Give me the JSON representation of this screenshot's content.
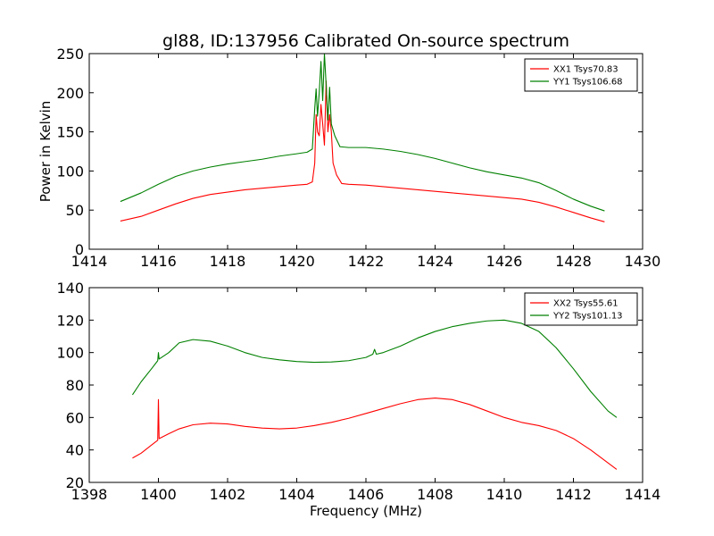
{
  "title": "gl88, ID:137956 Calibrated On-source spectrum",
  "chart_data": [
    {
      "type": "line",
      "title": "gl88, ID:137956 Calibrated On-source spectrum",
      "xlabel": "",
      "ylabel": "Power in Kelvin",
      "xlim": [
        1414,
        1430
      ],
      "ylim": [
        0,
        250
      ],
      "xticks": [
        1414,
        1416,
        1418,
        1420,
        1422,
        1424,
        1426,
        1428,
        1430
      ],
      "yticks": [
        0,
        50,
        100,
        150,
        200,
        250
      ],
      "grid": false,
      "legend_position": "top-right",
      "series": [
        {
          "name": "XX1 Tsys70.83",
          "color": "#ff0000",
          "points": [
            [
              1414.9,
              36
            ],
            [
              1415.5,
              42
            ],
            [
              1416.0,
              50
            ],
            [
              1416.5,
              58
            ],
            [
              1417.0,
              65
            ],
            [
              1417.5,
              70
            ],
            [
              1418.0,
              73
            ],
            [
              1418.5,
              76
            ],
            [
              1419.0,
              78
            ],
            [
              1419.5,
              80
            ],
            [
              1420.0,
              82
            ],
            [
              1420.3,
              83
            ],
            [
              1420.45,
              86
            ],
            [
              1420.52,
              110
            ],
            [
              1420.56,
              172
            ],
            [
              1420.6,
              150
            ],
            [
              1420.65,
              145
            ],
            [
              1420.7,
              185
            ],
            [
              1420.75,
              160
            ],
            [
              1420.8,
              133
            ],
            [
              1420.85,
              215
            ],
            [
              1420.9,
              150
            ],
            [
              1420.95,
              172
            ],
            [
              1421.0,
              150
            ],
            [
              1421.05,
              110
            ],
            [
              1421.15,
              95
            ],
            [
              1421.3,
              84
            ],
            [
              1421.5,
              83
            ],
            [
              1422.0,
              82
            ],
            [
              1422.5,
              80
            ],
            [
              1423.0,
              78
            ],
            [
              1423.5,
              76
            ],
            [
              1424.0,
              74
            ],
            [
              1424.5,
              72
            ],
            [
              1425.0,
              70
            ],
            [
              1425.5,
              68
            ],
            [
              1426.0,
              66
            ],
            [
              1426.5,
              64
            ],
            [
              1427.0,
              60
            ],
            [
              1427.5,
              54
            ],
            [
              1428.0,
              47
            ],
            [
              1428.5,
              40
            ],
            [
              1428.9,
              35
            ]
          ]
        },
        {
          "name": "YY1 Tsys106.68",
          "color": "#008000",
          "points": [
            [
              1414.9,
              61
            ],
            [
              1415.5,
              72
            ],
            [
              1416.0,
              83
            ],
            [
              1416.5,
              93
            ],
            [
              1417.0,
              100
            ],
            [
              1417.5,
              105
            ],
            [
              1418.0,
              109
            ],
            [
              1418.5,
              112
            ],
            [
              1419.0,
              115
            ],
            [
              1419.5,
              119
            ],
            [
              1420.0,
              122
            ],
            [
              1420.3,
              124
            ],
            [
              1420.45,
              128
            ],
            [
              1420.52,
              180
            ],
            [
              1420.56,
              205
            ],
            [
              1420.6,
              170
            ],
            [
              1420.65,
              200
            ],
            [
              1420.7,
              240
            ],
            [
              1420.75,
              190
            ],
            [
              1420.8,
              250
            ],
            [
              1420.85,
              210
            ],
            [
              1420.9,
              165
            ],
            [
              1420.95,
              207
            ],
            [
              1421.0,
              160
            ],
            [
              1421.1,
              145
            ],
            [
              1421.25,
              131
            ],
            [
              1421.5,
              130
            ],
            [
              1422.0,
              130
            ],
            [
              1422.5,
              128
            ],
            [
              1423.0,
              125
            ],
            [
              1423.5,
              121
            ],
            [
              1424.0,
              116
            ],
            [
              1424.5,
              110
            ],
            [
              1425.0,
              104
            ],
            [
              1425.5,
              99
            ],
            [
              1426.0,
              95
            ],
            [
              1426.5,
              91
            ],
            [
              1427.0,
              85
            ],
            [
              1427.5,
              75
            ],
            [
              1428.0,
              64
            ],
            [
              1428.5,
              55
            ],
            [
              1428.9,
              49
            ]
          ]
        }
      ]
    },
    {
      "type": "line",
      "title": "",
      "xlabel": "Frequency (MHz)",
      "ylabel": "",
      "xlim": [
        1398,
        1414
      ],
      "ylim": [
        20,
        140
      ],
      "xticks": [
        1398,
        1400,
        1402,
        1404,
        1406,
        1408,
        1410,
        1412,
        1414
      ],
      "yticks": [
        20,
        40,
        60,
        80,
        100,
        120,
        140
      ],
      "grid": false,
      "legend_position": "top-right",
      "series": [
        {
          "name": "XX2 Tsys55.61",
          "color": "#ff0000",
          "points": [
            [
              1399.25,
              35
            ],
            [
              1399.5,
              38
            ],
            [
              1399.8,
              43
            ],
            [
              1399.98,
              46
            ],
            [
              1400.0,
              71
            ],
            [
              1400.02,
              47
            ],
            [
              1400.3,
              50
            ],
            [
              1400.6,
              53
            ],
            [
              1401.0,
              55.5
            ],
            [
              1401.5,
              56.5
            ],
            [
              1402.0,
              56
            ],
            [
              1402.5,
              54.5
            ],
            [
              1403.0,
              53.5
            ],
            [
              1403.5,
              53
            ],
            [
              1404.0,
              53.5
            ],
            [
              1404.5,
              55
            ],
            [
              1405.0,
              57
            ],
            [
              1405.5,
              59.5
            ],
            [
              1406.0,
              62.5
            ],
            [
              1406.5,
              65.5
            ],
            [
              1407.0,
              68.5
            ],
            [
              1407.5,
              71
            ],
            [
              1408.0,
              72
            ],
            [
              1408.5,
              71
            ],
            [
              1409.0,
              68
            ],
            [
              1409.5,
              64
            ],
            [
              1410.0,
              60
            ],
            [
              1410.5,
              57
            ],
            [
              1411.0,
              55
            ],
            [
              1411.5,
              52
            ],
            [
              1412.0,
              47
            ],
            [
              1412.5,
              40
            ],
            [
              1413.0,
              32
            ],
            [
              1413.25,
              28
            ]
          ]
        },
        {
          "name": "YY2 Tsys101.13",
          "color": "#008000",
          "points": [
            [
              1399.25,
              74
            ],
            [
              1399.5,
              82
            ],
            [
              1399.8,
              90
            ],
            [
              1399.98,
              95
            ],
            [
              1400.0,
              100
            ],
            [
              1400.02,
              96
            ],
            [
              1400.3,
              100
            ],
            [
              1400.6,
              106
            ],
            [
              1401.0,
              108
            ],
            [
              1401.5,
              107
            ],
            [
              1402.0,
              104
            ],
            [
              1402.5,
              100
            ],
            [
              1403.0,
              97
            ],
            [
              1403.5,
              95.5
            ],
            [
              1404.0,
              94.5
            ],
            [
              1404.5,
              94
            ],
            [
              1405.0,
              94.2
            ],
            [
              1405.5,
              95
            ],
            [
              1406.0,
              97
            ],
            [
              1406.2,
              99
            ],
            [
              1406.25,
              102
            ],
            [
              1406.3,
              99
            ],
            [
              1406.5,
              100
            ],
            [
              1407.0,
              104
            ],
            [
              1407.5,
              109
            ],
            [
              1408.0,
              113
            ],
            [
              1408.5,
              116
            ],
            [
              1409.0,
              118
            ],
            [
              1409.5,
              119.5
            ],
            [
              1410.0,
              120
            ],
            [
              1410.5,
              118
            ],
            [
              1411.0,
              113
            ],
            [
              1411.5,
              103
            ],
            [
              1412.0,
              90
            ],
            [
              1412.5,
              76
            ],
            [
              1413.0,
              64
            ],
            [
              1413.25,
              60
            ]
          ]
        }
      ]
    }
  ]
}
